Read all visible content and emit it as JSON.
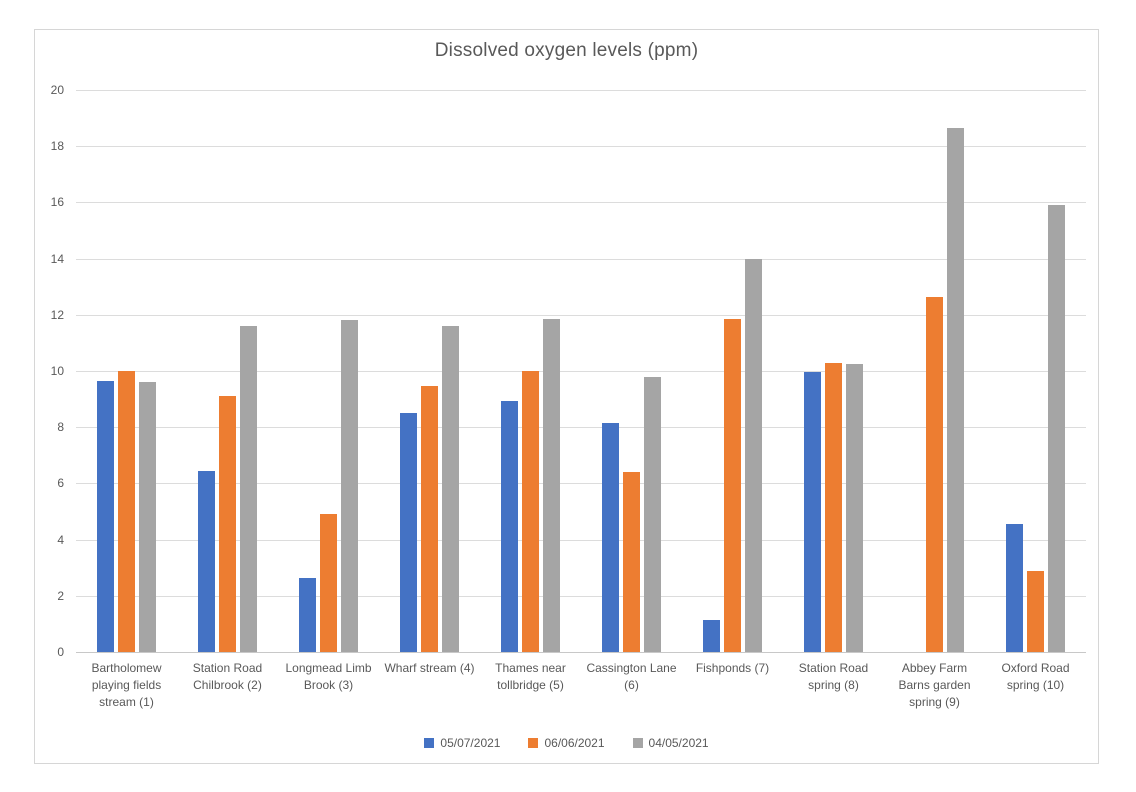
{
  "chart_data": {
    "type": "bar",
    "title": "Dissolved oxygen levels (ppm)",
    "categories": [
      "Bartholomew playing fields stream (1)",
      "Station Road Chilbrook (2)",
      "Longmead Limb Brook (3)",
      "Wharf stream (4)",
      "Thames near tollbridge (5)",
      "Cassington Lane (6)",
      "Fishponds (7)",
      "Station Road spring (8)",
      "Abbey Farm Barns garden spring (9)",
      "Oxford Road spring (10)"
    ],
    "series": [
      {
        "name": "05/07/2021",
        "color": "#4472C4",
        "values": [
          9.65,
          6.45,
          2.65,
          8.5,
          8.95,
          8.15,
          1.15,
          9.95,
          0,
          4.55
        ]
      },
      {
        "name": "06/06/2021",
        "color": "#ED7D31",
        "values": [
          10.0,
          9.1,
          4.9,
          9.45,
          10.0,
          6.4,
          11.85,
          10.3,
          12.65,
          2.9
        ]
      },
      {
        "name": "04/05/2021",
        "color": "#A5A5A5",
        "values": [
          9.6,
          11.6,
          11.8,
          11.6,
          11.85,
          9.8,
          14.0,
          10.25,
          18.65,
          15.9
        ]
      }
    ],
    "xlabel": "",
    "ylabel": "",
    "ylim": [
      0,
      20
    ],
    "yticks": [
      0,
      2,
      4,
      6,
      8,
      10,
      12,
      14,
      16,
      18,
      20
    ],
    "grid": true,
    "legend_position": "bottom",
    "colors": {
      "text": "#595959",
      "gridline": "#dcdcdc",
      "axis_line": "#c8c8c8",
      "frame_border": "#d6d6d6",
      "background": "#ffffff"
    }
  }
}
